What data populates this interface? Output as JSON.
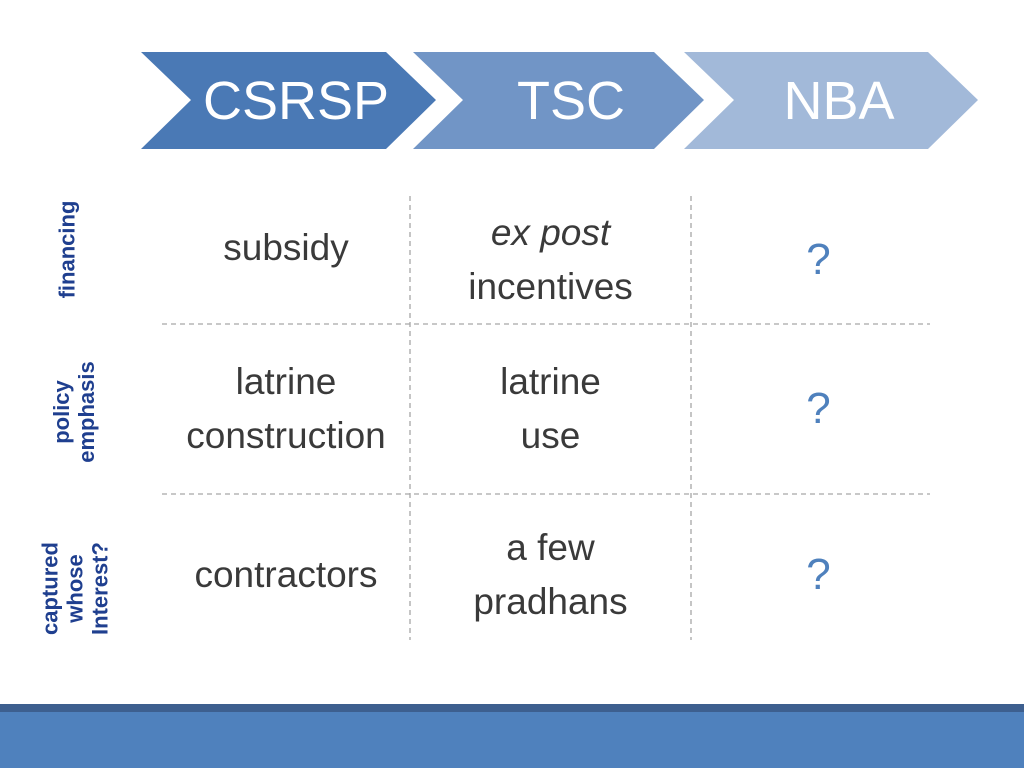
{
  "colors": {
    "chevron_1": "#4a79b5",
    "chevron_2": "#7195c6",
    "chevron_3": "#a2b9d9",
    "row_label": "#1f3f8f",
    "cell_text": "#3a3a3a",
    "question": "#4f81bd",
    "footer": "#4f81bd",
    "footer_accent": "#3d5f8f"
  },
  "columns": [
    {
      "label": "CSRSP"
    },
    {
      "label": "TSC"
    },
    {
      "label": "NBA"
    }
  ],
  "rows": [
    {
      "label_lines": [
        "financing"
      ],
      "cells": [
        {
          "lines": [
            {
              "text": "subsidy",
              "italic": false
            }
          ],
          "question": false
        },
        {
          "lines": [
            {
              "text": "ex post",
              "italic": true
            },
            {
              "text": "incentives",
              "italic": false
            }
          ],
          "question": false
        },
        {
          "lines": [
            {
              "text": "?",
              "italic": false
            }
          ],
          "question": true
        }
      ]
    },
    {
      "label_lines": [
        "policy",
        "emphasis"
      ],
      "cells": [
        {
          "lines": [
            {
              "text": "latrine",
              "italic": false
            },
            {
              "text": "construction",
              "italic": false
            }
          ],
          "question": false
        },
        {
          "lines": [
            {
              "text": "latrine",
              "italic": false
            },
            {
              "text": "use",
              "italic": false
            }
          ],
          "question": false
        },
        {
          "lines": [
            {
              "text": "?",
              "italic": false
            }
          ],
          "question": true
        }
      ]
    },
    {
      "label_lines": [
        "captured",
        "whose",
        "Interest?"
      ],
      "cells": [
        {
          "lines": [
            {
              "text": "contractors",
              "italic": false
            }
          ],
          "question": false
        },
        {
          "lines": [
            {
              "text": "a few",
              "italic": false
            },
            {
              "text": "pradhans",
              "italic": false
            }
          ],
          "question": false
        },
        {
          "lines": [
            {
              "text": "?",
              "italic": false
            }
          ],
          "question": true
        }
      ]
    }
  ]
}
